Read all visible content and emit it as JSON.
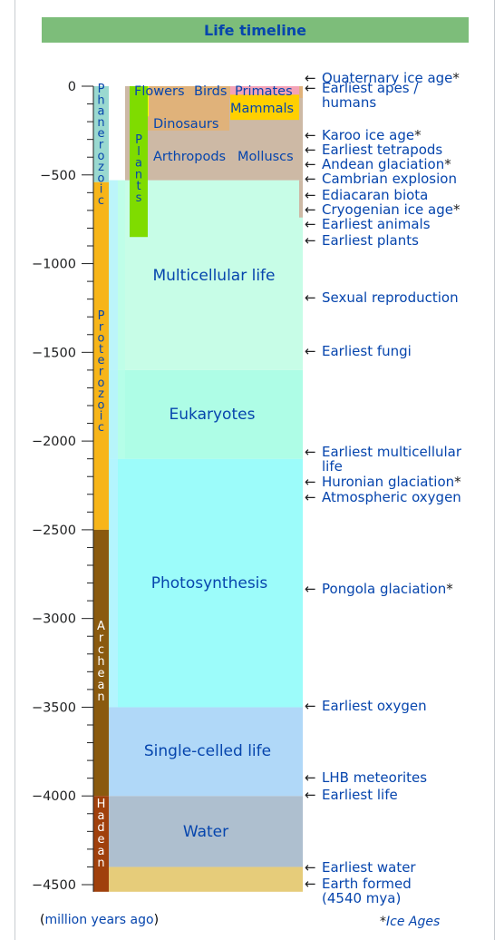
{
  "title": "Life timeline",
  "axis": {
    "ticks": [
      "0",
      "−500",
      "−1000",
      "−1500",
      "−2000",
      "−2500",
      "−3000",
      "−3500",
      "−4000",
      "−4500"
    ]
  },
  "eons": [
    {
      "id": "phanerozoic",
      "label": "Phanerozoic",
      "from": 0,
      "to": 541,
      "color": "#9ad9d0",
      "text_color": "#0645ad"
    },
    {
      "id": "proterozoic",
      "label": "Proterozoic",
      "from": 541,
      "to": 2500,
      "color": "#f7b519",
      "text_color": "#0645ad"
    },
    {
      "id": "archean",
      "label": "Archean",
      "from": 2500,
      "to": 4000,
      "color": "#8a5a0f",
      "text_color": "#ffffff"
    },
    {
      "id": "hadean",
      "label": "Hadean",
      "from": 4000,
      "to": 4540,
      "color": "#a0400c",
      "text_color": "#ffffff"
    }
  ],
  "life_bands": [
    {
      "id": "earth-formed-band",
      "label": "",
      "from": 4400,
      "to": 4540,
      "color": "#e6cc7a"
    },
    {
      "id": "water",
      "label": "Water",
      "from": 4000,
      "to": 4400,
      "color": "#aebfcf"
    },
    {
      "id": "single-celled-life",
      "label": "Single-celled life",
      "from": 3500,
      "to": 4000,
      "color": "#b0d8f8"
    },
    {
      "id": "photosynthesis",
      "label": "Photosynthesis",
      "from": 2100,
      "to": 3500,
      "color": "#9cfcfa"
    },
    {
      "id": "eukaryotes",
      "label": "Eukaryotes",
      "from": 1600,
      "to": 2100,
      "color": "#aefde6"
    },
    {
      "id": "multicellular-life",
      "label": "Multicellular life",
      "from": 530,
      "to": 1600,
      "color": "#c7fde7"
    }
  ],
  "groups": {
    "arthropods": "Arthropods",
    "molluscs": "Molluscs",
    "dinosaurs": "Dinosaurs",
    "flowers": "Flowers",
    "birds": "Birds",
    "primates": "Primates",
    "mammals": "Mammals",
    "plants": "Plants"
  },
  "events": [
    {
      "label": "Quaternary ice age",
      "mark": "*",
      "at": 2.6
    },
    {
      "label": "Earliest apes / humans",
      "mark": "",
      "at": 8
    },
    {
      "label": "Karoo ice age",
      "mark": "*",
      "at": 280
    },
    {
      "label": "Earliest tetrapods",
      "mark": "",
      "at": 365
    },
    {
      "label": "Andean glaciation",
      "mark": "*",
      "at": 440
    },
    {
      "label": "Cambrian explosion",
      "mark": "",
      "at": 530
    },
    {
      "label": "Ediacaran biota",
      "mark": "",
      "at": 620
    },
    {
      "label": "Cryogenian ice age",
      "mark": "*",
      "at": 680
    },
    {
      "label": "Earliest animals",
      "mark": "",
      "at": 750
    },
    {
      "label": "Earliest plants",
      "mark": "",
      "at": 850
    },
    {
      "label": "Sexual reproduction",
      "mark": "",
      "at": 1200
    },
    {
      "label": "Earliest fungi",
      "mark": "",
      "at": 1500
    },
    {
      "label": "Earliest multicellular life",
      "mark": "",
      "at": 2100
    },
    {
      "label": "Huronian glaciation",
      "mark": "*",
      "at": 2300
    },
    {
      "label": "Atmospheric oxygen",
      "mark": "",
      "at": 2400
    },
    {
      "label": "Pongola glaciation",
      "mark": "*",
      "at": 2900
    },
    {
      "label": "Earliest oxygen",
      "mark": "",
      "at": 3500
    },
    {
      "label": "LHB meteorites",
      "mark": "",
      "at": 3900
    },
    {
      "label": "Earliest life",
      "mark": "",
      "at": 4000
    },
    {
      "label": "Earliest water",
      "mark": "",
      "at": 4400
    },
    {
      "label": "Earth formed (4540 mya)",
      "mark": "",
      "at": 4540
    }
  ],
  "footer": {
    "units_open": "(",
    "units_link": "million years ago",
    "units_close": ")",
    "ice_note": "*Ice Ages"
  },
  "colors": {
    "title_bg": "#7dbd7a",
    "link": "#0645ad",
    "cenozoic_fauna": "#e0b27a",
    "paleozoic_fauna": "#cdb9a5",
    "plants": "#7fdc00",
    "flowers": "#ffff00",
    "primates": "#f4a3b7",
    "mammals": "#ffd000"
  }
}
